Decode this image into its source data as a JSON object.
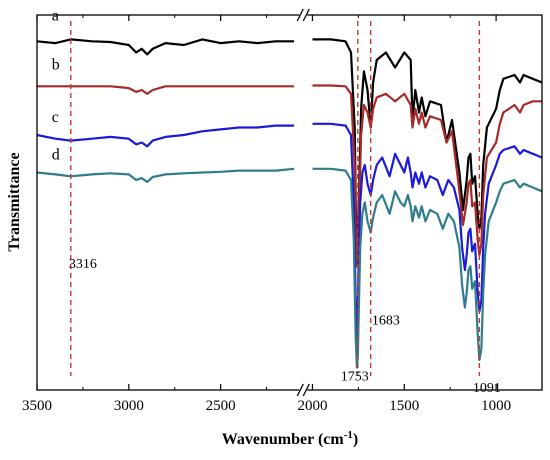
{
  "chart_data": {
    "type": "line",
    "xlabel": "Wavenumber (cm",
    "xlabel_sup": "-1",
    "xlabel_close": ")",
    "ylabel": "Transmittance",
    "x_axis_reversed": true,
    "x_axis_break": [
      2100,
      2000
    ],
    "xlim": [
      3500,
      750
    ],
    "ylim": [
      0,
      1
    ],
    "y_ticks_shown": false,
    "x_ticks": [
      3500,
      3000,
      2500,
      2000,
      1500,
      1000
    ],
    "x_tick_labels": [
      "3500",
      "3000",
      "2500",
      "2000",
      "1500",
      "1000"
    ],
    "annotations": [
      {
        "x": 3316,
        "label": "3316",
        "label_x": 3250,
        "label_y": 0.325
      },
      {
        "x": 1753,
        "label": "1753",
        "label_x": 1770,
        "label_y": 0.025
      },
      {
        "x": 1683,
        "label": "1683",
        "label_x": 1600,
        "label_y": 0.175
      },
      {
        "x": 1091,
        "label": "1091",
        "label_x": 1050,
        "label_y": -0.005
      }
    ],
    "annotation_color": "#c0392b",
    "series": [
      {
        "name": "a",
        "color": "#000000",
        "label_x": 3420,
        "label_y": 0.985,
        "points": [
          [
            3500,
            0.93
          ],
          [
            3400,
            0.925
          ],
          [
            3316,
            0.935
          ],
          [
            3200,
            0.93
          ],
          [
            3100,
            0.928
          ],
          [
            3000,
            0.92
          ],
          [
            2960,
            0.9
          ],
          [
            2930,
            0.91
          ],
          [
            2900,
            0.895
          ],
          [
            2870,
            0.91
          ],
          [
            2800,
            0.925
          ],
          [
            2700,
            0.92
          ],
          [
            2600,
            0.935
          ],
          [
            2500,
            0.925
          ],
          [
            2400,
            0.93
          ],
          [
            2300,
            0.925
          ],
          [
            2200,
            0.93
          ],
          [
            2100,
            0.93
          ],
          [
            2000,
            0.935
          ],
          [
            1900,
            0.935
          ],
          [
            1820,
            0.93
          ],
          [
            1790,
            0.9
          ],
          [
            1770,
            0.7
          ],
          [
            1760,
            0.35
          ],
          [
            1753,
            0.42
          ],
          [
            1745,
            0.55
          ],
          [
            1735,
            0.75
          ],
          [
            1720,
            0.85
          ],
          [
            1700,
            0.8
          ],
          [
            1683,
            0.7
          ],
          [
            1670,
            0.82
          ],
          [
            1650,
            0.88
          ],
          [
            1600,
            0.9
          ],
          [
            1550,
            0.86
          ],
          [
            1500,
            0.9
          ],
          [
            1465,
            0.88
          ],
          [
            1455,
            0.72
          ],
          [
            1440,
            0.8
          ],
          [
            1420,
            0.74
          ],
          [
            1405,
            0.78
          ],
          [
            1385,
            0.73
          ],
          [
            1360,
            0.77
          ],
          [
            1300,
            0.76
          ],
          [
            1270,
            0.66
          ],
          [
            1240,
            0.72
          ],
          [
            1200,
            0.58
          ],
          [
            1180,
            0.48
          ],
          [
            1160,
            0.56
          ],
          [
            1150,
            0.62
          ],
          [
            1140,
            0.63
          ],
          [
            1130,
            0.55
          ],
          [
            1115,
            0.57
          ],
          [
            1100,
            0.47
          ],
          [
            1091,
            0.43
          ],
          [
            1080,
            0.46
          ],
          [
            1070,
            0.6
          ],
          [
            1050,
            0.7
          ],
          [
            1000,
            0.75
          ],
          [
            980,
            0.8
          ],
          [
            960,
            0.83
          ],
          [
            900,
            0.84
          ],
          [
            870,
            0.82
          ],
          [
            850,
            0.84
          ],
          [
            800,
            0.83
          ],
          [
            750,
            0.82
          ]
        ]
      },
      {
        "name": "b",
        "color": "#a52a2a",
        "label_x": 3420,
        "label_y": 0.855,
        "points": [
          [
            3500,
            0.81
          ],
          [
            3400,
            0.81
          ],
          [
            3316,
            0.81
          ],
          [
            3200,
            0.81
          ],
          [
            3100,
            0.81
          ],
          [
            3000,
            0.805
          ],
          [
            2960,
            0.795
          ],
          [
            2930,
            0.8
          ],
          [
            2900,
            0.79
          ],
          [
            2870,
            0.8
          ],
          [
            2800,
            0.81
          ],
          [
            2700,
            0.81
          ],
          [
            2600,
            0.81
          ],
          [
            2500,
            0.81
          ],
          [
            2400,
            0.81
          ],
          [
            2300,
            0.81
          ],
          [
            2200,
            0.81
          ],
          [
            2100,
            0.81
          ],
          [
            2000,
            0.812
          ],
          [
            1900,
            0.812
          ],
          [
            1820,
            0.81
          ],
          [
            1790,
            0.79
          ],
          [
            1770,
            0.6
          ],
          [
            1760,
            0.33
          ],
          [
            1753,
            0.36
          ],
          [
            1745,
            0.5
          ],
          [
            1735,
            0.68
          ],
          [
            1720,
            0.76
          ],
          [
            1700,
            0.74
          ],
          [
            1683,
            0.7
          ],
          [
            1670,
            0.75
          ],
          [
            1650,
            0.78
          ],
          [
            1600,
            0.79
          ],
          [
            1550,
            0.77
          ],
          [
            1500,
            0.79
          ],
          [
            1465,
            0.76
          ],
          [
            1455,
            0.7
          ],
          [
            1440,
            0.75
          ],
          [
            1420,
            0.71
          ],
          [
            1405,
            0.74
          ],
          [
            1385,
            0.7
          ],
          [
            1360,
            0.73
          ],
          [
            1300,
            0.72
          ],
          [
            1270,
            0.66
          ],
          [
            1240,
            0.69
          ],
          [
            1200,
            0.53
          ],
          [
            1180,
            0.44
          ],
          [
            1160,
            0.5
          ],
          [
            1150,
            0.55
          ],
          [
            1140,
            0.56
          ],
          [
            1130,
            0.49
          ],
          [
            1115,
            0.5
          ],
          [
            1100,
            0.4
          ],
          [
            1091,
            0.36
          ],
          [
            1080,
            0.39
          ],
          [
            1070,
            0.52
          ],
          [
            1050,
            0.62
          ],
          [
            1000,
            0.66
          ],
          [
            980,
            0.71
          ],
          [
            960,
            0.74
          ],
          [
            900,
            0.76
          ],
          [
            870,
            0.74
          ],
          [
            850,
            0.76
          ],
          [
            800,
            0.77
          ],
          [
            750,
            0.77
          ]
        ]
      },
      {
        "name": "c",
        "color": "#1a1adb",
        "label_x": 3420,
        "label_y": 0.715,
        "points": [
          [
            3500,
            0.68
          ],
          [
            3400,
            0.67
          ],
          [
            3316,
            0.665
          ],
          [
            3200,
            0.67
          ],
          [
            3100,
            0.675
          ],
          [
            3000,
            0.67
          ],
          [
            2960,
            0.655
          ],
          [
            2930,
            0.66
          ],
          [
            2900,
            0.65
          ],
          [
            2870,
            0.665
          ],
          [
            2800,
            0.675
          ],
          [
            2700,
            0.68
          ],
          [
            2600,
            0.69
          ],
          [
            2500,
            0.695
          ],
          [
            2400,
            0.7
          ],
          [
            2300,
            0.7
          ],
          [
            2200,
            0.705
          ],
          [
            2100,
            0.705
          ],
          [
            2000,
            0.71
          ],
          [
            1900,
            0.71
          ],
          [
            1820,
            0.705
          ],
          [
            1790,
            0.68
          ],
          [
            1775,
            0.5
          ],
          [
            1765,
            0.25
          ],
          [
            1758,
            0.14
          ],
          [
            1753,
            0.2
          ],
          [
            1748,
            0.34
          ],
          [
            1740,
            0.5
          ],
          [
            1728,
            0.58
          ],
          [
            1715,
            0.6
          ],
          [
            1700,
            0.55
          ],
          [
            1683,
            0.52
          ],
          [
            1670,
            0.56
          ],
          [
            1650,
            0.6
          ],
          [
            1620,
            0.62
          ],
          [
            1580,
            0.57
          ],
          [
            1550,
            0.63
          ],
          [
            1520,
            0.6
          ],
          [
            1500,
            0.58
          ],
          [
            1480,
            0.62
          ],
          [
            1465,
            0.58
          ],
          [
            1455,
            0.54
          ],
          [
            1440,
            0.58
          ],
          [
            1420,
            0.55
          ],
          [
            1405,
            0.58
          ],
          [
            1385,
            0.54
          ],
          [
            1360,
            0.57
          ],
          [
            1320,
            0.56
          ],
          [
            1290,
            0.52
          ],
          [
            1260,
            0.56
          ],
          [
            1230,
            0.54
          ],
          [
            1200,
            0.48
          ],
          [
            1185,
            0.38
          ],
          [
            1170,
            0.32
          ],
          [
            1160,
            0.36
          ],
          [
            1150,
            0.42
          ],
          [
            1140,
            0.43
          ],
          [
            1130,
            0.37
          ],
          [
            1115,
            0.39
          ],
          [
            1100,
            0.26
          ],
          [
            1091,
            0.21
          ],
          [
            1080,
            0.24
          ],
          [
            1070,
            0.38
          ],
          [
            1060,
            0.47
          ],
          [
            1040,
            0.55
          ],
          [
            1000,
            0.6
          ],
          [
            980,
            0.63
          ],
          [
            960,
            0.64
          ],
          [
            900,
            0.65
          ],
          [
            870,
            0.63
          ],
          [
            850,
            0.64
          ],
          [
            800,
            0.63
          ],
          [
            750,
            0.62
          ]
        ]
      },
      {
        "name": "d",
        "color": "#2e7d8c",
        "label_x": 3420,
        "label_y": 0.615,
        "points": [
          [
            3500,
            0.58
          ],
          [
            3400,
            0.575
          ],
          [
            3316,
            0.57
          ],
          [
            3200,
            0.575
          ],
          [
            3100,
            0.578
          ],
          [
            3000,
            0.575
          ],
          [
            2960,
            0.56
          ],
          [
            2930,
            0.565
          ],
          [
            2900,
            0.555
          ],
          [
            2870,
            0.568
          ],
          [
            2800,
            0.575
          ],
          [
            2700,
            0.578
          ],
          [
            2600,
            0.58
          ],
          [
            2500,
            0.582
          ],
          [
            2400,
            0.585
          ],
          [
            2300,
            0.585
          ],
          [
            2200,
            0.585
          ],
          [
            2100,
            0.59
          ],
          [
            2000,
            0.59
          ],
          [
            1900,
            0.59
          ],
          [
            1820,
            0.585
          ],
          [
            1790,
            0.56
          ],
          [
            1775,
            0.4
          ],
          [
            1765,
            0.15
          ],
          [
            1758,
            0.06
          ],
          [
            1753,
            0.09
          ],
          [
            1748,
            0.2
          ],
          [
            1740,
            0.38
          ],
          [
            1728,
            0.47
          ],
          [
            1715,
            0.5
          ],
          [
            1700,
            0.45
          ],
          [
            1683,
            0.42
          ],
          [
            1670,
            0.46
          ],
          [
            1650,
            0.5
          ],
          [
            1620,
            0.52
          ],
          [
            1580,
            0.47
          ],
          [
            1550,
            0.53
          ],
          [
            1520,
            0.5
          ],
          [
            1500,
            0.49
          ],
          [
            1480,
            0.52
          ],
          [
            1465,
            0.49
          ],
          [
            1455,
            0.45
          ],
          [
            1440,
            0.49
          ],
          [
            1420,
            0.46
          ],
          [
            1405,
            0.49
          ],
          [
            1385,
            0.45
          ],
          [
            1360,
            0.48
          ],
          [
            1320,
            0.47
          ],
          [
            1290,
            0.43
          ],
          [
            1260,
            0.47
          ],
          [
            1230,
            0.45
          ],
          [
            1200,
            0.38
          ],
          [
            1185,
            0.28
          ],
          [
            1170,
            0.22
          ],
          [
            1160,
            0.26
          ],
          [
            1150,
            0.32
          ],
          [
            1140,
            0.33
          ],
          [
            1130,
            0.27
          ],
          [
            1115,
            0.29
          ],
          [
            1100,
            0.15
          ],
          [
            1091,
            0.08
          ],
          [
            1080,
            0.11
          ],
          [
            1070,
            0.26
          ],
          [
            1060,
            0.36
          ],
          [
            1040,
            0.45
          ],
          [
            1000,
            0.5
          ],
          [
            980,
            0.53
          ],
          [
            960,
            0.55
          ],
          [
            900,
            0.56
          ],
          [
            870,
            0.54
          ],
          [
            850,
            0.55
          ],
          [
            800,
            0.54
          ],
          [
            750,
            0.53
          ]
        ]
      }
    ]
  }
}
